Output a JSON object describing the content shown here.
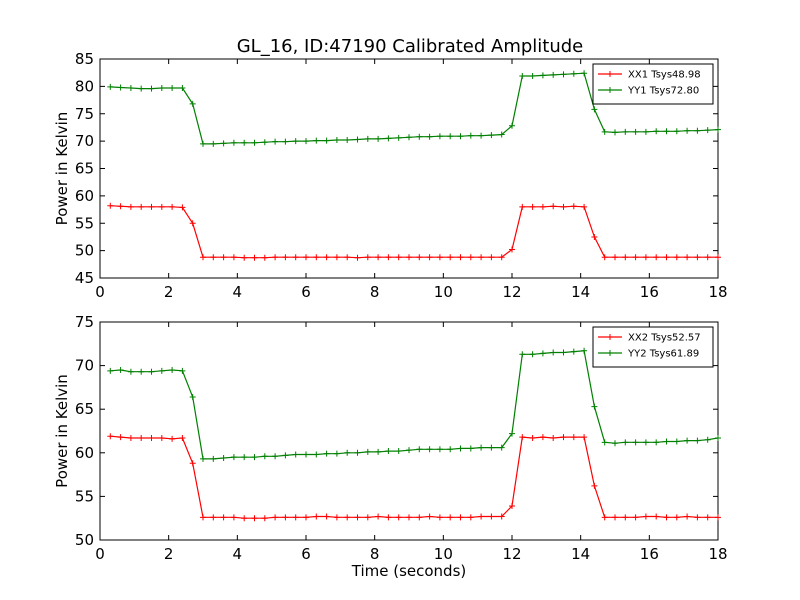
{
  "figure": {
    "title": "GL_16, ID:47190 Calibrated Amplitude"
  },
  "chart_data": [
    {
      "type": "line",
      "title": "GL_16, ID:47190 Calibrated Amplitude",
      "xlabel": "",
      "ylabel": "Power in Kelvin",
      "xlim": [
        0,
        18
      ],
      "ylim": [
        45,
        85
      ],
      "xticks": [
        0,
        2,
        4,
        6,
        8,
        10,
        12,
        14,
        16,
        18
      ],
      "yticks": [
        45,
        50,
        55,
        60,
        65,
        70,
        75,
        80,
        85
      ],
      "grid": false,
      "legend_position": "top-right",
      "x": [
        0.3,
        0.6,
        0.9,
        1.2,
        1.5,
        1.8,
        2.1,
        2.4,
        2.7,
        3.0,
        3.3,
        3.6,
        3.9,
        4.2,
        4.5,
        4.8,
        5.1,
        5.4,
        5.7,
        6.0,
        6.3,
        6.6,
        6.9,
        7.2,
        7.5,
        7.8,
        8.1,
        8.4,
        8.7,
        9.0,
        9.3,
        9.6,
        9.9,
        10.2,
        10.5,
        10.8,
        11.1,
        11.4,
        11.7,
        12.0,
        12.3,
        12.6,
        12.9,
        13.2,
        13.5,
        13.8,
        14.1,
        14.4,
        14.7,
        15.0,
        15.3,
        15.6,
        15.9,
        16.2,
        16.5,
        16.8,
        17.1,
        17.4,
        17.7,
        18.0
      ],
      "series": [
        {
          "name": "XX1 Tsys48.98",
          "color": "#ff0000",
          "values": [
            58.2,
            58.1,
            58.0,
            58.0,
            58.0,
            58.0,
            58.0,
            57.9,
            55.0,
            48.8,
            48.8,
            48.8,
            48.8,
            48.7,
            48.7,
            48.7,
            48.8,
            48.8,
            48.8,
            48.8,
            48.8,
            48.8,
            48.8,
            48.8,
            48.7,
            48.8,
            48.8,
            48.8,
            48.8,
            48.8,
            48.8,
            48.8,
            48.8,
            48.8,
            48.8,
            48.8,
            48.8,
            48.8,
            48.8,
            50.2,
            58.0,
            58.0,
            58.0,
            58.1,
            58.0,
            58.1,
            58.0,
            52.5,
            48.8,
            48.8,
            48.8,
            48.8,
            48.8,
            48.8,
            48.8,
            48.8,
            48.8,
            48.8,
            48.8,
            48.8
          ]
        },
        {
          "name": "YY1 Tsys72.80",
          "color": "#008000",
          "values": [
            79.9,
            79.8,
            79.7,
            79.6,
            79.6,
            79.7,
            79.7,
            79.7,
            76.8,
            69.5,
            69.5,
            69.6,
            69.7,
            69.7,
            69.7,
            69.8,
            69.9,
            69.9,
            70.0,
            70.0,
            70.1,
            70.1,
            70.2,
            70.2,
            70.3,
            70.4,
            70.4,
            70.5,
            70.6,
            70.7,
            70.8,
            70.8,
            70.9,
            70.9,
            70.9,
            71.0,
            71.0,
            71.1,
            71.2,
            72.8,
            81.9,
            81.9,
            82.0,
            82.1,
            82.2,
            82.3,
            82.4,
            75.8,
            71.7,
            71.6,
            71.7,
            71.7,
            71.7,
            71.8,
            71.8,
            71.8,
            71.9,
            71.9,
            72.0,
            72.1
          ]
        }
      ]
    },
    {
      "type": "line",
      "title": "",
      "xlabel": "Time (seconds)",
      "ylabel": "Power in Kelvin",
      "xlim": [
        0,
        18
      ],
      "ylim": [
        50,
        75
      ],
      "xticks": [
        0,
        2,
        4,
        6,
        8,
        10,
        12,
        14,
        16,
        18
      ],
      "yticks": [
        50,
        55,
        60,
        65,
        70,
        75
      ],
      "grid": false,
      "legend_position": "top-right",
      "x": [
        0.3,
        0.6,
        0.9,
        1.2,
        1.5,
        1.8,
        2.1,
        2.4,
        2.7,
        3.0,
        3.3,
        3.6,
        3.9,
        4.2,
        4.5,
        4.8,
        5.1,
        5.4,
        5.7,
        6.0,
        6.3,
        6.6,
        6.9,
        7.2,
        7.5,
        7.8,
        8.1,
        8.4,
        8.7,
        9.0,
        9.3,
        9.6,
        9.9,
        10.2,
        10.5,
        10.8,
        11.1,
        11.4,
        11.7,
        12.0,
        12.3,
        12.6,
        12.9,
        13.2,
        13.5,
        13.8,
        14.1,
        14.4,
        14.7,
        15.0,
        15.3,
        15.6,
        15.9,
        16.2,
        16.5,
        16.8,
        17.1,
        17.4,
        17.7,
        18.0
      ],
      "series": [
        {
          "name": "XX2 Tsys52.57",
          "color": "#ff0000",
          "values": [
            61.9,
            61.8,
            61.7,
            61.7,
            61.7,
            61.7,
            61.6,
            61.7,
            58.8,
            52.6,
            52.6,
            52.6,
            52.6,
            52.5,
            52.5,
            52.5,
            52.6,
            52.6,
            52.6,
            52.6,
            52.7,
            52.7,
            52.6,
            52.6,
            52.6,
            52.6,
            52.7,
            52.6,
            52.6,
            52.6,
            52.6,
            52.7,
            52.6,
            52.6,
            52.6,
            52.6,
            52.7,
            52.7,
            52.7,
            53.9,
            61.8,
            61.7,
            61.8,
            61.7,
            61.8,
            61.8,
            61.8,
            56.2,
            52.6,
            52.6,
            52.6,
            52.6,
            52.7,
            52.7,
            52.6,
            52.6,
            52.7,
            52.6,
            52.6,
            52.6
          ]
        },
        {
          "name": "YY2 Tsys61.89",
          "color": "#008000",
          "values": [
            69.4,
            69.5,
            69.3,
            69.3,
            69.3,
            69.4,
            69.5,
            69.4,
            66.4,
            59.3,
            59.3,
            59.4,
            59.5,
            59.5,
            59.5,
            59.6,
            59.6,
            59.7,
            59.8,
            59.8,
            59.8,
            59.9,
            59.9,
            60.0,
            60.0,
            60.1,
            60.1,
            60.2,
            60.2,
            60.3,
            60.4,
            60.4,
            60.4,
            60.4,
            60.5,
            60.5,
            60.6,
            60.6,
            60.6,
            62.2,
            71.3,
            71.3,
            71.4,
            71.5,
            71.5,
            71.6,
            71.7,
            65.3,
            61.2,
            61.1,
            61.2,
            61.2,
            61.2,
            61.2,
            61.3,
            61.3,
            61.4,
            61.4,
            61.5,
            61.7
          ]
        }
      ]
    }
  ]
}
